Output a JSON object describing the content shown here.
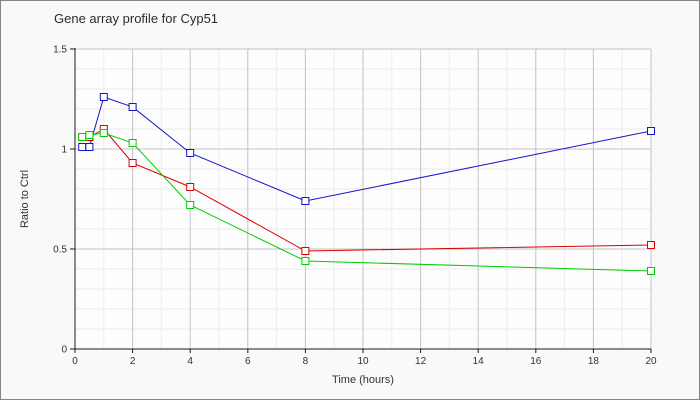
{
  "chart_data": {
    "type": "line",
    "title": "Gene array profile for Cyp51",
    "xlabel": "Time (hours)",
    "ylabel": "Ratio to Ctrl",
    "xlim": [
      0,
      20
    ],
    "ylim": [
      0,
      1.5
    ],
    "x_ticks": [
      0,
      2,
      4,
      6,
      8,
      10,
      12,
      14,
      16,
      18,
      20
    ],
    "x_tick_labels": [
      "0",
      "2",
      "4",
      "6",
      "8",
      "10",
      "12",
      "14",
      "16",
      "18",
      "20"
    ],
    "y_ticks": [
      0,
      0.5,
      1,
      1.5
    ],
    "y_tick_labels": [
      "0",
      "0.5",
      "1",
      "1.5"
    ],
    "grid": {
      "x_minor_step": 1,
      "y_minor_step": 0.1,
      "minor_color": "#ececec",
      "major_color": "#c3c3c3"
    },
    "legend": "none",
    "marker": "open-square",
    "x": [
      0.25,
      0.5,
      1,
      2,
      4,
      8,
      20
    ],
    "series": [
      {
        "name": "series-blue",
        "color": "#1414c8",
        "values": [
          1.01,
          1.01,
          1.26,
          1.21,
          0.98,
          0.74,
          1.09
        ]
      },
      {
        "name": "series-red",
        "color": "#dd0000",
        "values": [
          1.06,
          1.06,
          1.1,
          0.93,
          0.81,
          0.49,
          0.52
        ]
      },
      {
        "name": "series-green",
        "color": "#00cc00",
        "values": [
          1.06,
          1.07,
          1.08,
          1.03,
          0.72,
          0.44,
          0.39
        ]
      }
    ],
    "colors": {
      "background": "#f9f9f9",
      "plot_background": "#fdfdfd",
      "axis": "#1a1a1a"
    }
  }
}
